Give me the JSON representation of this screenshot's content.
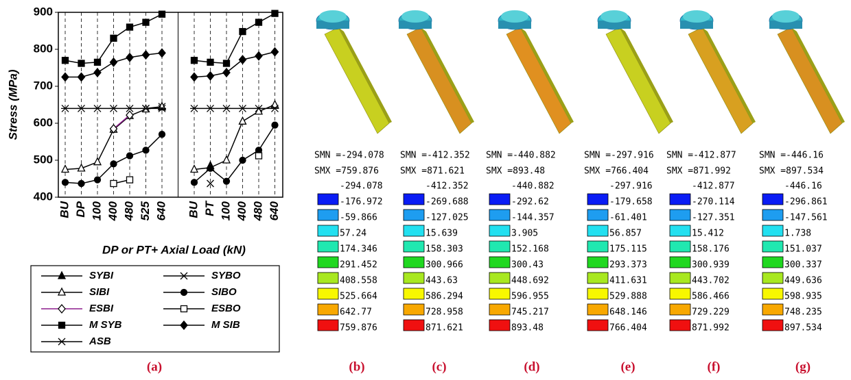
{
  "chart_data": {
    "type": "line",
    "ylabel": "Stress (MPa)",
    "xlabel": "DP or PT+ Axial Load (kN)",
    "label": "(a)",
    "categories": [
      "BU",
      "DP",
      "100",
      "400",
      "480",
      "525",
      "640",
      null,
      "BU",
      "PT",
      "100",
      "400",
      "480",
      "640"
    ],
    "ylim": [
      400,
      900
    ],
    "yticks": [
      400,
      500,
      600,
      700,
      800,
      900
    ],
    "grid": true,
    "series": [
      {
        "name": "SYBI",
        "color": "#000000",
        "marker": "triangle",
        "values": [
          null,
          null,
          null,
          null,
          null,
          null,
          643,
          null,
          null,
          485,
          null,
          null,
          null,
          null
        ]
      },
      {
        "name": "SYBO",
        "color": "#000000",
        "marker": "x",
        "values": [
          null,
          null,
          null,
          null,
          null,
          640,
          645,
          null,
          null,
          437,
          null,
          null,
          null,
          null
        ]
      },
      {
        "name": "SIBI",
        "color": "#000000",
        "marker": "triangle-open",
        "values": [
          475,
          478,
          495,
          583,
          620,
          638,
          645,
          null,
          475,
          480,
          500,
          605,
          632,
          650
        ]
      },
      {
        "name": "SIBO",
        "color": "#000000",
        "marker": "circle",
        "values": [
          440,
          437,
          447,
          490,
          512,
          527,
          570,
          null,
          440,
          478,
          443,
          500,
          527,
          595
        ]
      },
      {
        "name": "ESBI",
        "color": "#8b1a8b",
        "marker": "diamond-open",
        "values": [
          null,
          null,
          null,
          585,
          622,
          null,
          null,
          null,
          null,
          null,
          null,
          null,
          null,
          null
        ]
      },
      {
        "name": "ESBO",
        "color": "#000000",
        "marker": "square-open",
        "values": [
          null,
          null,
          null,
          437,
          447,
          null,
          null,
          null,
          null,
          null,
          null,
          null,
          512,
          null
        ]
      },
      {
        "name": "M SYB",
        "color": "#000000",
        "marker": "square",
        "values": [
          770,
          762,
          765,
          830,
          860,
          873,
          895,
          null,
          770,
          765,
          762,
          848,
          873,
          897
        ]
      },
      {
        "name": "M SIB",
        "color": "#000000",
        "marker": "diamond",
        "values": [
          725,
          725,
          737,
          765,
          778,
          785,
          790,
          null,
          725,
          728,
          737,
          772,
          782,
          793
        ]
      },
      {
        "name": "ASB",
        "color": "#000000",
        "marker": "star",
        "values": [
          640,
          640,
          640,
          640,
          640,
          640,
          640,
          null,
          640,
          640,
          640,
          640,
          640,
          640
        ]
      }
    ]
  },
  "contour_colors": [
    "#0a1cf5",
    "#1e9df0",
    "#22e0f0",
    "#20e8b0",
    "#20d820",
    "#a8e820",
    "#f8f800",
    "#f8a800",
    "#f01010"
  ],
  "panels": [
    {
      "label": "(b)",
      "smn": "SMN =-294.078",
      "smx": "SMX =759.876",
      "levels": [
        -294.078,
        -176.972,
        -59.866,
        57.24,
        174.346,
        291.452,
        408.558,
        525.664,
        642.77,
        759.876
      ]
    },
    {
      "label": "(c)",
      "smn": "SMN =-412.352",
      "smx": "SMX =871.621",
      "levels": [
        -412.352,
        -269.688,
        -127.025,
        15.639,
        158.303,
        300.966,
        443.63,
        586.294,
        728.958,
        871.621
      ]
    },
    {
      "label": "(d)",
      "smn": "SMN =-440.882",
      "smx": "SMX =893.48",
      "levels": [
        -440.882,
        -292.62,
        -144.357,
        3.905,
        152.168,
        300.43,
        448.692,
        596.955,
        745.217,
        893.48
      ]
    },
    {
      "label": "(e)",
      "smn": "SMN =-297.916",
      "smx": "SMX =766.404",
      "levels": [
        -297.916,
        -179.658,
        -61.401,
        56.857,
        175.115,
        293.373,
        411.631,
        529.888,
        648.146,
        766.404
      ]
    },
    {
      "label": "(f)",
      "smn": "SMN =-412.877",
      "smx": "SMX =871.992",
      "levels": [
        -412.877,
        -270.114,
        -127.351,
        15.412,
        158.176,
        300.939,
        443.702,
        586.466,
        729.229,
        871.992
      ]
    },
    {
      "label": "(g)",
      "smn": "SMN =-446.16",
      "smx": "SMX =897.534",
      "levels": [
        -446.16,
        -296.861,
        -147.561,
        1.738,
        151.037,
        300.337,
        449.636,
        598.935,
        748.235,
        897.534
      ]
    }
  ]
}
